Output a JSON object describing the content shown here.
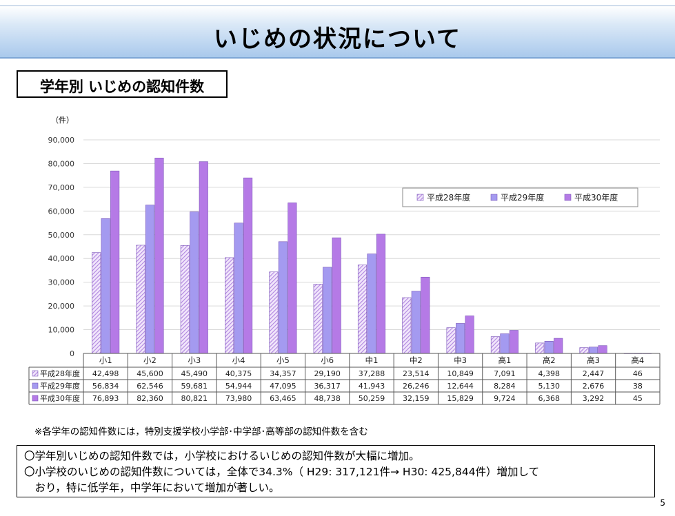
{
  "title": "いじめの状況について",
  "section_title": "学年別 いじめの認知件数",
  "note": "※各学年の認知件数には，特別支援学校小学部･中学部･高等部の認知件数を含む",
  "summary": {
    "line1": "〇学年別いじめの認知件数では，小学校におけるいじめの認知件数が大幅に増加。",
    "line2": "〇小学校のいじめの認知件数については，全体で34.3%（ H29: 317,121件→ H30: 425,844件）増加して",
    "line3": "　おり，特に低学年，中学年において増加が著しい。"
  },
  "page_number": "5",
  "chart_data": {
    "type": "bar",
    "unit_label": "（件）",
    "ylim": [
      0,
      90000
    ],
    "yticks": [
      "0",
      "10,000",
      "20,000",
      "30,000",
      "40,000",
      "50,000",
      "60,000",
      "70,000",
      "80,000",
      "90,000"
    ],
    "grid": true,
    "legend_position": "top-right",
    "categories": [
      "小1",
      "小2",
      "小3",
      "小4",
      "小5",
      "小6",
      "中1",
      "中2",
      "中3",
      "高1",
      "高2",
      "高3",
      "高4"
    ],
    "series": [
      {
        "name": "平成28年度",
        "color": "#c9a6ec",
        "pattern": "hatched",
        "values": [
          42498,
          45600,
          45490,
          40375,
          34357,
          29190,
          37288,
          23514,
          10849,
          7091,
          4398,
          2447,
          46
        ],
        "labels": [
          "42,498",
          "45,600",
          "45,490",
          "40,375",
          "34,357",
          "29,190",
          "37,288",
          "23,514",
          "10,849",
          "7,091",
          "4,398",
          "2,447",
          "46"
        ]
      },
      {
        "name": "平成29年度",
        "color": "#a49af0",
        "pattern": "solid",
        "values": [
          56834,
          62546,
          59681,
          54944,
          47095,
          36317,
          41943,
          26246,
          12644,
          8284,
          5130,
          2676,
          38
        ],
        "labels": [
          "56,834",
          "62,546",
          "59,681",
          "54,944",
          "47,095",
          "36,317",
          "41,943",
          "26,246",
          "12,644",
          "8,284",
          "5,130",
          "2,676",
          "38"
        ]
      },
      {
        "name": "平成30年度",
        "color": "#b57ae6",
        "pattern": "solid",
        "values": [
          76893,
          82360,
          80821,
          73980,
          63465,
          48738,
          50259,
          32159,
          15829,
          9724,
          6368,
          3292,
          45
        ],
        "labels": [
          "76,893",
          "82,360",
          "80,821",
          "73,980",
          "63,465",
          "48,738",
          "50,259",
          "32,159",
          "15,829",
          "9,724",
          "6,368",
          "3,292",
          "45"
        ]
      }
    ]
  }
}
